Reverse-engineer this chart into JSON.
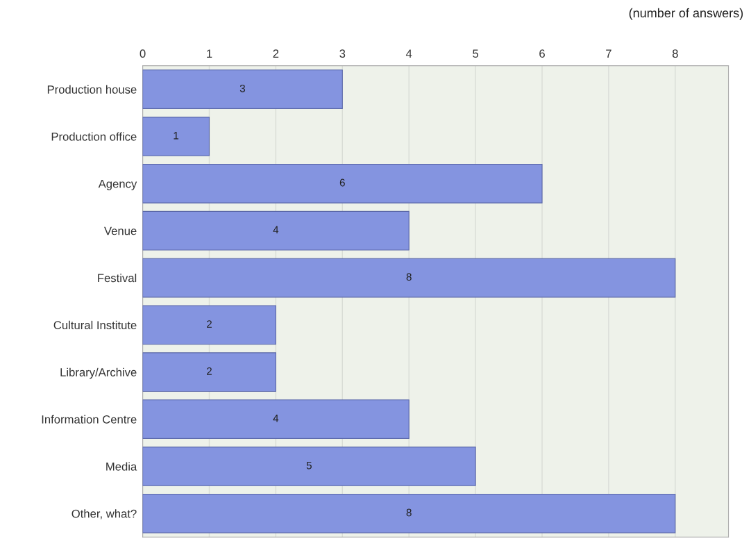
{
  "chart_data": {
    "type": "bar",
    "orientation": "horizontal",
    "categories": [
      "Production house",
      "Production office",
      "Agency",
      "Venue",
      "Festival",
      "Cultural Institute",
      "Library/Archive",
      "Information Centre",
      "Media",
      "Other, what?"
    ],
    "values": [
      3,
      1,
      6,
      4,
      8,
      2,
      2,
      4,
      5,
      8
    ],
    "color": "#8494e0",
    "xlim": [
      0,
      8.8
    ],
    "xticks": [
      0,
      1,
      2,
      3,
      4,
      5,
      6,
      7,
      8
    ],
    "grid": "x",
    "data_labels": true,
    "annotations": [
      "(number of answers)"
    ]
  }
}
